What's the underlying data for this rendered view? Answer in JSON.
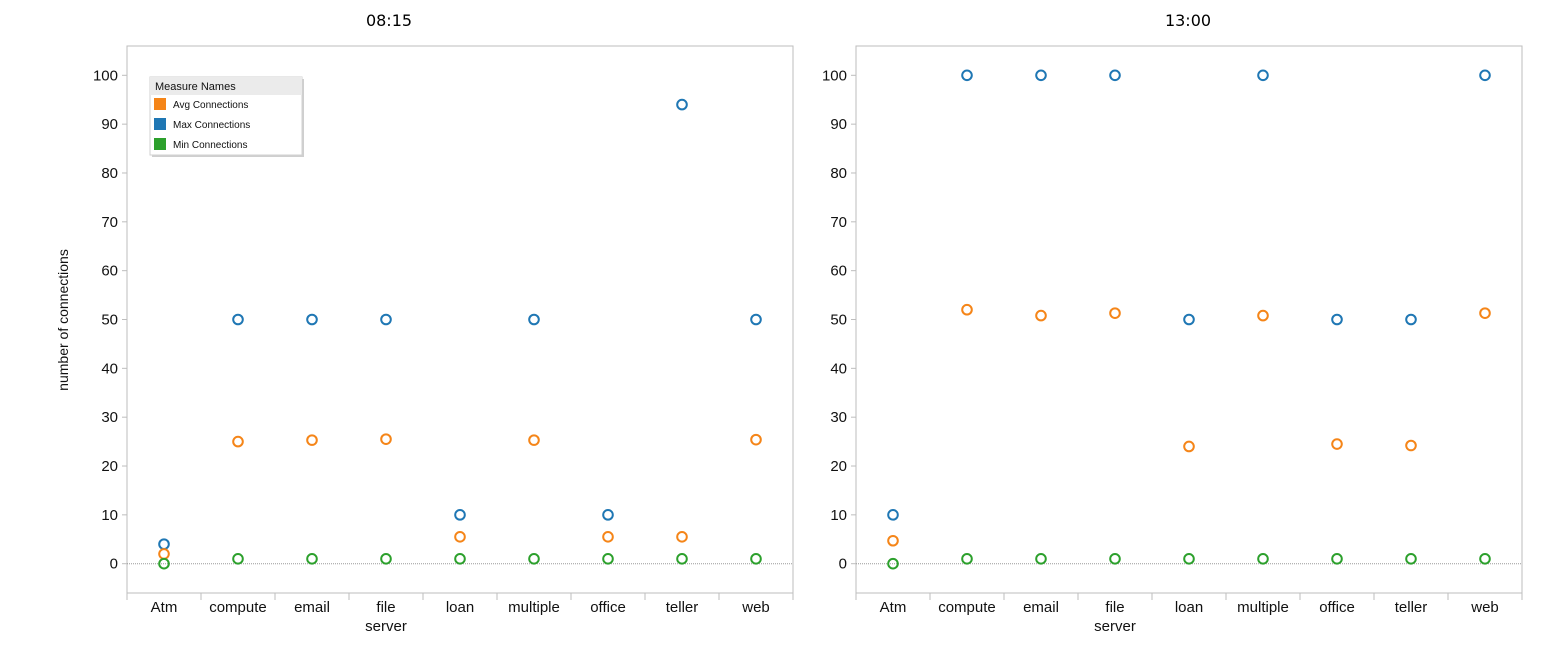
{
  "chart_data": [
    {
      "type": "scatter",
      "title": "08:15",
      "ylabel": "number of connections",
      "xlabel": "",
      "categories": [
        "Atm",
        "compute",
        "email",
        "file server",
        "loan",
        "multiple",
        "office",
        "teller",
        "web"
      ],
      "ylim": [
        -6,
        106
      ],
      "yticks": [
        0,
        10,
        20,
        30,
        40,
        50,
        60,
        70,
        80,
        90,
        100
      ],
      "legend": {
        "title": "Measure Names",
        "position": "top-left"
      },
      "series": [
        {
          "name": "Avg Connections",
          "color": "#f58518",
          "values": [
            2,
            25,
            25.3,
            25.5,
            5.5,
            25.3,
            5.5,
            5.5,
            25.4
          ]
        },
        {
          "name": "Max Connections",
          "color": "#1f77b4",
          "values": [
            4,
            50,
            50,
            50,
            10,
            50,
            10,
            94,
            50
          ]
        },
        {
          "name": "Min Connections",
          "color": "#2ca02c",
          "values": [
            0,
            1,
            1,
            1,
            1,
            1,
            1,
            1,
            1
          ]
        }
      ]
    },
    {
      "type": "scatter",
      "title": "13:00",
      "ylabel": "",
      "xlabel": "",
      "categories": [
        "Atm",
        "compute",
        "email",
        "file server",
        "loan",
        "multiple",
        "office",
        "teller",
        "web"
      ],
      "ylim": [
        -6,
        106
      ],
      "yticks": [
        0,
        10,
        20,
        30,
        40,
        50,
        60,
        70,
        80,
        90,
        100
      ],
      "series": [
        {
          "name": "Avg Connections",
          "color": "#f58518",
          "values": [
            4.7,
            52,
            50.8,
            51.3,
            24,
            50.8,
            24.5,
            24.2,
            51.3
          ]
        },
        {
          "name": "Max Connections",
          "color": "#1f77b4",
          "values": [
            10,
            100,
            100,
            100,
            50,
            100,
            50,
            50,
            100
          ]
        },
        {
          "name": "Min Connections",
          "color": "#2ca02c",
          "values": [
            0,
            1,
            1,
            1,
            1,
            1,
            1,
            1,
            1
          ]
        }
      ]
    }
  ]
}
